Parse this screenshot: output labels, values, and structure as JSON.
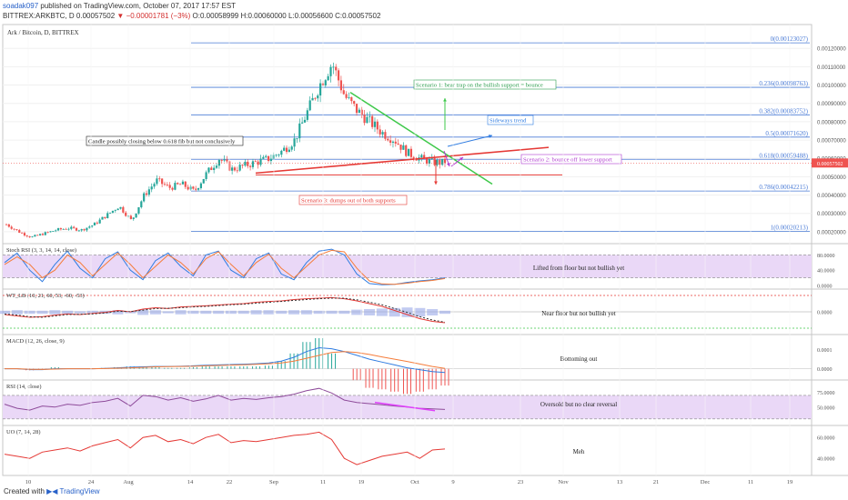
{
  "header": {
    "user": "soadak097",
    "published": "published on TradingView.com, October 07, 2017 17:57 EST",
    "symbol": "BITTREX:ARKBTC, D",
    "last": "0.00057502",
    "change": "−0.00001781 (−3%)",
    "ohlc": "O:0.00058999 H:0.00060000 L:0.00056600 C:0.00057502"
  },
  "footer": {
    "created_with": "Created with",
    "brand": "TradingView"
  },
  "colors": {
    "up": "#26a69a",
    "down": "#ef5350",
    "fib": "#4a7bd6",
    "purple_band": "#ead8f7",
    "stoch_k": "#2f7ce1",
    "stoch_d": "#f57c3a",
    "macd": "#2f7ce1",
    "signal": "#f57c3a",
    "rsi": "#8e4b9a",
    "uo": "#e53935"
  },
  "chart_data": [
    {
      "type": "candlestick",
      "title": "Ark / Bitcoin, D, BITTREX",
      "yticks": [
        "0.00120000",
        "0.00110000",
        "0.00100000",
        "0.00090000",
        "0.00080000",
        "0.00070000",
        "0.00060000",
        "0.00050000",
        "0.00040000",
        "0.00030000",
        "0.00020000"
      ],
      "ylim": [
        0.00015,
        0.00133
      ],
      "last_price_label": "0.00057502",
      "x_ticks": [
        "10",
        "24",
        "Aug",
        "14",
        "22",
        "Sep",
        "11",
        "19",
        "Oct",
        "9",
        "23",
        "Nov",
        "13",
        "21",
        "Dec",
        "11",
        "19"
      ],
      "close_path": [
        0.00024,
        0.0002,
        0.00017,
        0.00019,
        0.00021,
        0.00022,
        0.00021,
        0.00024,
        0.00029,
        0.00034,
        0.00026,
        0.0004,
        0.00048,
        0.00044,
        0.00046,
        0.00042,
        0.00052,
        0.0006,
        0.00054,
        0.00056,
        0.00058,
        0.0006,
        0.00064,
        0.0007,
        0.00085,
        0.001,
        0.00112,
        0.00094,
        0.00086,
        0.0008,
        0.00074,
        0.0007,
        0.00063,
        0.0006,
        0.00058,
        0.00057502
      ],
      "fib_levels": [
        {
          "ratio": 0,
          "price": 0.00123027,
          "label": "0(0.00123027)"
        },
        {
          "ratio": 0.236,
          "price": 0.00098763,
          "label": "0.236(0.00098763)"
        },
        {
          "ratio": 0.382,
          "price": 0.00083752,
          "label": "0.382(0.00083752)"
        },
        {
          "ratio": 0.5,
          "price": 0.0007162,
          "label": "0.5(0.00071620)"
        },
        {
          "ratio": 0.618,
          "price": 0.00059488,
          "label": "0.618(0.00059488)"
        },
        {
          "ratio": 0.786,
          "price": 0.00042215,
          "label": "0.786(0.00042215)"
        },
        {
          "ratio": 1,
          "price": 0.00020213,
          "label": "1(0.00020213)"
        }
      ],
      "annotations": [
        {
          "text": "Scenario 1: bear trap on the bullish support = bounce",
          "color": "#2e9e4f"
        },
        {
          "text": "Sideways trend",
          "color": "#2f7ce1"
        },
        {
          "text": "Candle possibly closing below 0.618 fib but not conclusively",
          "color": "#222"
        },
        {
          "text": "Scenario 2: bounce off lower support",
          "color": "#b03bd0"
        },
        {
          "text": "Scenario 3: dumps out of both supports",
          "color": "#e53935"
        }
      ]
    },
    {
      "type": "line",
      "title": "Stoch RSI (3, 3, 14, 14, close)",
      "yticks": [
        "80.0000",
        "40.0000",
        "0.0000"
      ],
      "ylim": [
        0,
        100
      ],
      "annotation": "Lifted from floor but not bullish yet",
      "series": [
        {
          "values": [
            60,
            85,
            40,
            10,
            55,
            90,
            45,
            20,
            70,
            88,
            40,
            15,
            65,
            85,
            50,
            25,
            80,
            90,
            40,
            20,
            70,
            85,
            30,
            15,
            60,
            90,
            95,
            80,
            30,
            5,
            2,
            3,
            8,
            12,
            15,
            20
          ]
        },
        {
          "values": [
            55,
            75,
            55,
            20,
            40,
            80,
            60,
            25,
            55,
            85,
            55,
            20,
            50,
            80,
            60,
            30,
            70,
            88,
            55,
            25,
            60,
            82,
            45,
            20,
            50,
            80,
            92,
            88,
            45,
            12,
            4,
            3,
            6,
            10,
            13,
            18
          ]
        }
      ]
    },
    {
      "type": "line",
      "title": "WT_LB (10, 21, 60, 53, -60, -53)",
      "yticks": [
        "0.0000"
      ],
      "ylim": [
        -70,
        70
      ],
      "annotation": "Near floor but not bullish yet",
      "series": [
        {
          "values": [
            -10,
            -15,
            -20,
            -18,
            -12,
            -8,
            -10,
            -6,
            -2,
            5,
            0,
            10,
            15,
            12,
            18,
            20,
            22,
            25,
            28,
            30,
            35,
            38,
            40,
            45,
            48,
            50,
            52,
            48,
            40,
            30,
            20,
            5,
            -10,
            -25,
            -35,
            -40
          ]
        },
        {
          "values": [
            -8,
            -12,
            -18,
            -20,
            -15,
            -10,
            -9,
            -8,
            -4,
            2,
            1,
            6,
            12,
            13,
            15,
            18,
            20,
            23,
            26,
            28,
            32,
            35,
            38,
            42,
            45,
            48,
            50,
            50,
            44,
            35,
            26,
            12,
            -2,
            -18,
            -30,
            -38
          ]
        }
      ]
    },
    {
      "type": "line",
      "title": "MACD (12, 26, close, 9)",
      "yticks": [
        "0.0001",
        "0.0000"
      ],
      "ylim": [
        -4e-05,
        0.00016
      ],
      "annotation": "Bottoming out",
      "series": [
        {
          "values": [
            0,
            0,
            -5e-06,
            -5e-06,
            0,
            0,
            0,
            0,
            2e-06,
            5e-06,
            8e-06,
            1e-05,
            1.2e-05,
            1.2e-05,
            1.3e-05,
            1.5e-05,
            1.8e-05,
            2e-05,
            2.2e-05,
            2.4e-05,
            2.6e-05,
            3e-05,
            4e-05,
            6e-05,
            9e-05,
            0.00011,
            0.000105,
            9e-05,
            7e-05,
            5e-05,
            3.5e-05,
            2e-05,
            5e-06,
            -5e-06,
            -1.5e-05,
            -2e-05
          ]
        },
        {
          "values": [
            0,
            0,
            -3e-06,
            -4e-06,
            -2e-06,
            0,
            0,
            0,
            1e-06,
            3e-06,
            5e-06,
            7e-06,
            1e-05,
            1.1e-05,
            1.2e-05,
            1.3e-05,
            1.5e-05,
            1.7e-05,
            1.9e-05,
            2.1e-05,
            2.3e-05,
            2.6e-05,
            3e-05,
            4e-05,
            5.5e-05,
            7e-05,
            8.5e-05,
            9e-05,
            8.5e-05,
            7.5e-05,
            6.2e-05,
            5e-05,
            3.8e-05,
            2.5e-05,
            1.2e-05,
            2e-06
          ]
        }
      ]
    },
    {
      "type": "line",
      "title": "RSI (14, close)",
      "yticks": [
        "75.0000",
        "50.0000"
      ],
      "ylim": [
        25,
        90
      ],
      "annotation": "Oversold but no clear reversal",
      "series": [
        {
          "values": [
            55,
            48,
            45,
            52,
            50,
            55,
            53,
            58,
            60,
            65,
            52,
            70,
            68,
            62,
            66,
            60,
            64,
            70,
            62,
            65,
            63,
            66,
            68,
            72,
            78,
            82,
            74,
            62,
            58,
            56,
            54,
            52,
            50,
            48,
            47,
            46
          ]
        }
      ]
    },
    {
      "type": "line",
      "title": "UO (7, 14, 28)",
      "yticks": [
        "60.0000",
        "40.0000"
      ],
      "ylim": [
        28,
        68
      ],
      "annotation": "Meh",
      "series": [
        {
          "values": [
            44,
            42,
            40,
            46,
            48,
            50,
            47,
            52,
            55,
            58,
            50,
            60,
            62,
            56,
            58,
            54,
            60,
            63,
            55,
            57,
            56,
            58,
            60,
            62,
            63,
            65,
            58,
            40,
            34,
            38,
            42,
            44,
            46,
            40,
            48,
            49
          ]
        }
      ]
    }
  ]
}
